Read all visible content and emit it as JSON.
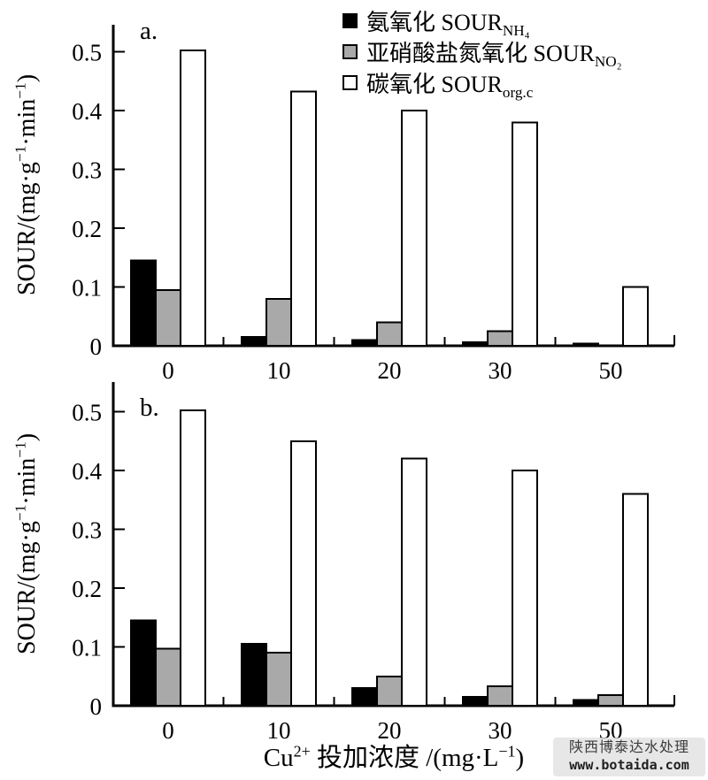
{
  "legend": {
    "items": [
      {
        "key": "nh4",
        "prefix": "氨氧化 ",
        "base": "SOUR",
        "sub": "NH₄",
        "color": "#000000"
      },
      {
        "key": "no2",
        "prefix": "亚硝酸盐氮氧化 ",
        "base": "SOUR",
        "sub": "NO₂",
        "color": "#a9a9a9"
      },
      {
        "key": "orgc",
        "prefix": "碳氧化 ",
        "base": "SOUR",
        "sub": "org.c",
        "color": "#ffffff"
      }
    ]
  },
  "axes": {
    "y_title": {
      "p1": "SOUR/(mg·g",
      "s1": "−1",
      "p2": "·min",
      "s2": "−1",
      "p3": ")"
    },
    "x_title": {
      "p1": "Cu",
      "s1": "2+",
      "p2": " 投加浓度 /(mg·L",
      "s2": "−1",
      "p3": ")"
    }
  },
  "watermark": {
    "line1": "陕西博泰达水处理",
    "line2": "www.botaida.com"
  },
  "chart_data": [
    {
      "type": "bar",
      "panel_label": "a.",
      "title": "",
      "xlabel": "Cu2+ 投加浓度 /(mg·L−1)",
      "ylabel": "SOUR/(mg·g−1·min−1)",
      "categories": [
        0,
        10,
        20,
        30,
        50
      ],
      "series": [
        {
          "key": "nh4",
          "name": "氨氧化 SOUR_NH4",
          "color": "#000000",
          "values": [
            0.145,
            0.015,
            0.01,
            0.006,
            0.004
          ]
        },
        {
          "key": "no2",
          "name": "亚硝酸盐氮氧化 SOUR_NO2",
          "color": "#a9a9a9",
          "values": [
            0.095,
            0.08,
            0.04,
            0.025,
            0
          ]
        },
        {
          "key": "orgc",
          "name": "碳氧化 SOUR_org.c",
          "color": "#ffffff",
          "values": [
            0.502,
            0.432,
            0.4,
            0.38,
            0.1
          ]
        }
      ],
      "ylim": [
        0,
        0.55
      ],
      "yticks": [
        0,
        0.1,
        0.2,
        0.3,
        0.4,
        0.5
      ],
      "grid": false,
      "legend_position": "top"
    },
    {
      "type": "bar",
      "panel_label": "b.",
      "title": "",
      "xlabel": "Cu2+ 投加浓度 /(mg·L−1)",
      "ylabel": "SOUR/(mg·g−1·min−1)",
      "categories": [
        0,
        10,
        20,
        30,
        50
      ],
      "series": [
        {
          "key": "nh4",
          "name": "氨氧化 SOUR_NH4",
          "color": "#000000",
          "values": [
            0.145,
            0.105,
            0.03,
            0.015,
            0.01
          ]
        },
        {
          "key": "no2",
          "name": "亚硝酸盐氮氧化 SOUR_NO2",
          "color": "#a9a9a9",
          "values": [
            0.097,
            0.09,
            0.05,
            0.033,
            0.018
          ]
        },
        {
          "key": "orgc",
          "name": "碳氧化 SOUR_org.c",
          "color": "#ffffff",
          "values": [
            0.502,
            0.45,
            0.42,
            0.4,
            0.36
          ]
        }
      ],
      "ylim": [
        0,
        0.55
      ],
      "yticks": [
        0,
        0.1,
        0.2,
        0.3,
        0.4,
        0.5
      ],
      "grid": false,
      "legend_position": "top"
    }
  ]
}
